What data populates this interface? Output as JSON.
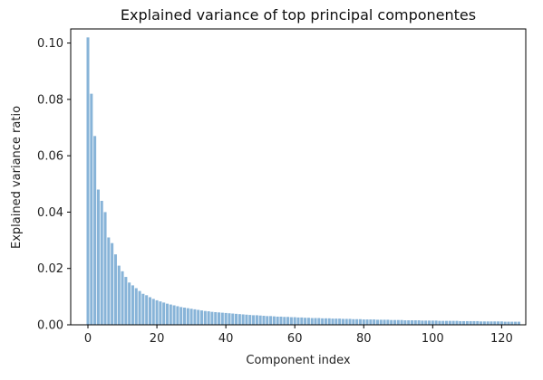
{
  "chart_data": {
    "type": "bar",
    "title": "Explained variance of top principal componentes",
    "xlabel": "Component index",
    "ylabel": "Explained variance ratio",
    "xlim": [
      -5,
      127
    ],
    "ylim": [
      0,
      0.105
    ],
    "xticks": [
      0,
      20,
      40,
      60,
      80,
      100,
      120
    ],
    "yticks": [
      0.0,
      0.02,
      0.04,
      0.06,
      0.08,
      0.1
    ],
    "ytick_labels": [
      "0.00",
      "0.02",
      "0.04",
      "0.06",
      "0.08",
      "0.10"
    ],
    "grid": false,
    "bar_color": "#88b4d8",
    "x": [
      0,
      1,
      2,
      3,
      4,
      5,
      6,
      7,
      8,
      9,
      10,
      11,
      12,
      13,
      14,
      15,
      16,
      17,
      18,
      19,
      20,
      21,
      22,
      23,
      24,
      25,
      26,
      27,
      28,
      29,
      30,
      31,
      32,
      33,
      34,
      35,
      36,
      37,
      38,
      39,
      40,
      41,
      42,
      43,
      44,
      45,
      46,
      47,
      48,
      49,
      50,
      51,
      52,
      53,
      54,
      55,
      56,
      57,
      58,
      59,
      60,
      61,
      62,
      63,
      64,
      65,
      66,
      67,
      68,
      69,
      70,
      71,
      72,
      73,
      74,
      75,
      76,
      77,
      78,
      79,
      80,
      81,
      82,
      83,
      84,
      85,
      86,
      87,
      88,
      89,
      90,
      91,
      92,
      93,
      94,
      95,
      96,
      97,
      98,
      99,
      100,
      101,
      102,
      103,
      104,
      105,
      106,
      107,
      108,
      109,
      110,
      111,
      112,
      113,
      114,
      115,
      116,
      117,
      118,
      119,
      120,
      121,
      122,
      123,
      124,
      125
    ],
    "values": [
      0.102,
      0.082,
      0.067,
      0.048,
      0.044,
      0.04,
      0.031,
      0.029,
      0.025,
      0.021,
      0.019,
      0.017,
      0.015,
      0.014,
      0.013,
      0.012,
      0.011,
      0.0105,
      0.0098,
      0.0092,
      0.0087,
      0.0083,
      0.0079,
      0.0075,
      0.0072,
      0.0069,
      0.0066,
      0.0063,
      0.0061,
      0.0059,
      0.0057,
      0.0055,
      0.0053,
      0.0051,
      0.0049,
      0.0048,
      0.0046,
      0.0045,
      0.0044,
      0.0043,
      0.0042,
      0.0041,
      0.004,
      0.0039,
      0.0038,
      0.0037,
      0.0036,
      0.0035,
      0.0034,
      0.0034,
      0.0033,
      0.0032,
      0.0031,
      0.0031,
      0.003,
      0.0029,
      0.0029,
      0.0028,
      0.0028,
      0.0027,
      0.0027,
      0.0026,
      0.0026,
      0.0025,
      0.0025,
      0.0024,
      0.0024,
      0.0024,
      0.0023,
      0.0023,
      0.0023,
      0.0022,
      0.0022,
      0.0022,
      0.0021,
      0.0021,
      0.0021,
      0.002,
      0.002,
      0.002,
      0.0019,
      0.0019,
      0.0019,
      0.0019,
      0.0018,
      0.0018,
      0.0018,
      0.0018,
      0.0017,
      0.0017,
      0.0017,
      0.0017,
      0.0016,
      0.0016,
      0.0016,
      0.0016,
      0.0016,
      0.0015,
      0.0015,
      0.0015,
      0.0015,
      0.0015,
      0.0014,
      0.0014,
      0.0014,
      0.0014,
      0.0014,
      0.0014,
      0.0013,
      0.0013,
      0.0013,
      0.0013,
      0.0013,
      0.0013,
      0.0012,
      0.0012,
      0.0012,
      0.0012,
      0.0012,
      0.0012,
      0.0012,
      0.0011,
      0.0011,
      0.0011,
      0.0011,
      0.0011
    ]
  }
}
